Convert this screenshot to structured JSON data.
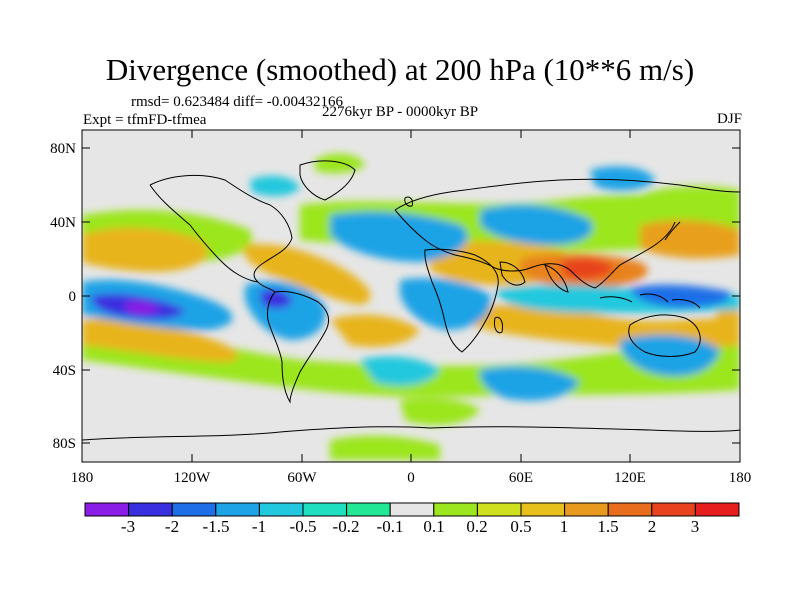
{
  "title": "Divergence (smoothed) at 200 hPa (10**6 m/s)",
  "stats_text": "rmsd= 0.623484  diff= -0.00432166",
  "experiment_label": "Expt = tfmFD-tfmea",
  "period_label": "2276kyr BP - 0000kyr BP",
  "season_label": "DJF",
  "lat_ticks": [
    "80N",
    "40N",
    "0",
    "40S",
    "80S"
  ],
  "lon_ticks": [
    "180",
    "120W",
    "60W",
    "0",
    "60E",
    "120E",
    "180"
  ],
  "colorbar": {
    "labels": [
      "-3",
      "-2",
      "-1.5",
      "-1",
      "-0.5",
      "-0.2",
      "-0.1",
      "0.1",
      "0.2",
      "0.5",
      "1",
      "1.5",
      "2",
      "3"
    ],
    "colors": [
      "#8b1ee6",
      "#3a2fe0",
      "#1e6ee8",
      "#1ea3e6",
      "#22c8de",
      "#1ee0c0",
      "#22e895",
      "#e6e6e6",
      "#9be61e",
      "#cfe01e",
      "#e8c01e",
      "#e89a1e",
      "#e86e1e",
      "#e8421e",
      "#e61e1e"
    ]
  },
  "chart_data": {
    "type": "heatmap",
    "title": "Divergence (smoothed) at 200 hPa (10**6 m/s)",
    "units": "10**6 m/s",
    "level": "200 hPa",
    "season": "DJF",
    "experiment": "tfmFD-tfmea",
    "period": "2276kyr BP - 0000kyr BP",
    "rmsd": 0.623484,
    "diff": -0.00432166,
    "lon_range": [
      -180,
      180
    ],
    "lat_range": [
      -90,
      90
    ],
    "contour_levels": [
      -3,
      -2,
      -1.5,
      -1,
      -0.5,
      -0.2,
      -0.1,
      0.1,
      0.2,
      0.5,
      1,
      1.5,
      2,
      3
    ],
    "features": [
      {
        "region": "central tropical Pacific (10S, 150W)",
        "value": -2.5
      },
      {
        "region": "western Pacific / Indonesia (0, 150E)",
        "value": -2.0
      },
      {
        "region": "tropical South America (5S, 70W)",
        "value": -2.0
      },
      {
        "region": "tropical Atlantic (0, 20W)",
        "value": -1.0
      },
      {
        "region": "northern Indian Ocean / S. Asia (15N, 80E)",
        "value": 2.0
      },
      {
        "region": "NE Pacific band (25N, 170W)",
        "value": 1.0
      },
      {
        "region": "S. Pacific band (25S, 160W)",
        "value": 1.0
      },
      {
        "region": "subtropical S. Atlantic (15S, 20W)",
        "value": 1.0
      },
      {
        "region": "Arabia / N. Africa (20N, 40E)",
        "value": 0.5
      },
      {
        "region": "Australia (20S, 130E)",
        "value": 1.0
      }
    ]
  }
}
